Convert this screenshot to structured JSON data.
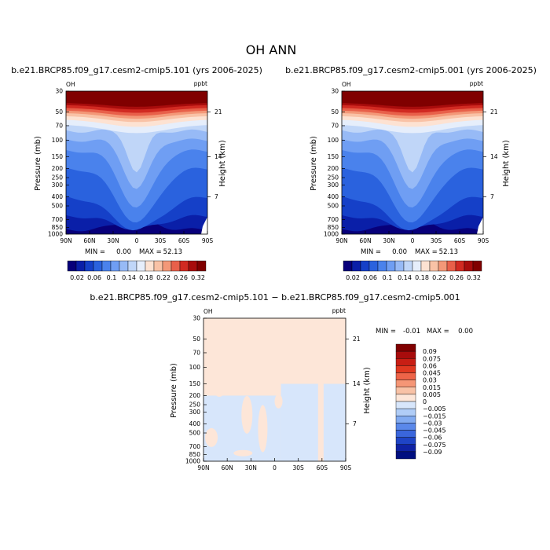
{
  "title": "OH ANN",
  "panels": [
    {
      "subtitle": "b.e21.BRCP85.f09_g17.cesm2-cmip5.101 (yrs 2006-2025)",
      "left_label": "OH",
      "right_label": "ppbt",
      "min_label": "MIN =",
      "min_value": "0.00",
      "max_label": "MAX =",
      "max_value": "52.13"
    },
    {
      "subtitle": "b.e21.BRCP85.f09_g17.cesm2-cmip5.001 (yrs 2006-2025)",
      "left_label": "OH",
      "right_label": "ppbt",
      "min_label": "MIN =",
      "min_value": "0.00",
      "max_label": "MAX =",
      "max_value": "52.13"
    },
    {
      "subtitle": "b.e21.BRCP85.f09_g17.cesm2-cmip5.101 − b.e21.BRCP85.f09_g17.cesm2-cmip5.001",
      "left_label": "OH",
      "right_label": "ppbt",
      "min_label": "MIN =",
      "min_value": "-0.01",
      "max_label": "MAX =",
      "max_value": "0.00"
    }
  ],
  "chart_data": [
    {
      "type": "heatmap",
      "title": "OH ANN",
      "subtitle": "b.e21.BRCP85.f09_g17.cesm2-cmip5.101 (yrs 2006-2025)",
      "xlabel": "",
      "ylabel": "Pressure (mb)",
      "y2label": "Height (km)",
      "x_ticks": [
        "90N",
        "60N",
        "30N",
        "0",
        "30S",
        "60S",
        "90S"
      ],
      "y_ticks": [
        "30",
        "50",
        "70",
        "100",
        "150",
        "200",
        "250",
        "300",
        "400",
        "500",
        "700",
        "850",
        "1000"
      ],
      "y2_ticks": [
        "21",
        "14",
        "7"
      ],
      "xlim": [
        90,
        -90
      ],
      "ylim": [
        1000,
        30
      ],
      "y_scale": "log",
      "units": "ppbt",
      "min": 0.0,
      "max": 52.13,
      "colorbar": [
        "0.02",
        "0.06",
        "0.1",
        "0.14",
        "0.18",
        "0.22",
        "0.26",
        "0.32"
      ]
    },
    {
      "type": "heatmap",
      "title": "OH ANN",
      "subtitle": "b.e21.BRCP85.f09_g17.cesm2-cmip5.001 (yrs 2006-2025)",
      "xlabel": "",
      "ylabel": "Pressure (mb)",
      "y2label": "Height (km)",
      "x_ticks": [
        "90N",
        "60N",
        "30N",
        "0",
        "30S",
        "60S",
        "90S"
      ],
      "y_ticks": [
        "30",
        "50",
        "70",
        "100",
        "150",
        "200",
        "250",
        "300",
        "400",
        "500",
        "700",
        "850",
        "1000"
      ],
      "y2_ticks": [
        "21",
        "14",
        "7"
      ],
      "xlim": [
        90,
        -90
      ],
      "ylim": [
        1000,
        30
      ],
      "y_scale": "log",
      "units": "ppbt",
      "min": 0.0,
      "max": 52.13,
      "colorbar": [
        "0.02",
        "0.06",
        "0.1",
        "0.14",
        "0.18",
        "0.22",
        "0.26",
        "0.32"
      ]
    },
    {
      "type": "heatmap",
      "title": "OH ANN",
      "subtitle": "b.e21.BRCP85.f09_g17.cesm2-cmip5.101 − b.e21.BRCP85.f09_g17.cesm2-cmip5.001",
      "xlabel": "",
      "ylabel": "Pressure (mb)",
      "y2label": "Height (km)",
      "x_ticks": [
        "90N",
        "60N",
        "30N",
        "0",
        "30S",
        "60S",
        "90S"
      ],
      "y_ticks": [
        "30",
        "50",
        "70",
        "100",
        "150",
        "200",
        "250",
        "300",
        "400",
        "500",
        "700",
        "850",
        "1000"
      ],
      "y2_ticks": [
        "21",
        "14",
        "7"
      ],
      "xlim": [
        90,
        -90
      ],
      "ylim": [
        1000,
        30
      ],
      "y_scale": "log",
      "units": "ppbt",
      "min": -0.01,
      "max": 0.0,
      "colorbar": [
        "0.09",
        "0.075",
        "0.06",
        "0.045",
        "0.03",
        "0.015",
        "0.005",
        "0",
        "−0.005",
        "−0.015",
        "−0.03",
        "−0.045",
        "−0.06",
        "−0.075",
        "−0.09"
      ]
    }
  ],
  "colors": {
    "mean_palette": [
      "#08007a",
      "#0a1fa8",
      "#1540c8",
      "#2a62de",
      "#4a82ec",
      "#6f9ef3",
      "#97baf6",
      "#c0d6f8",
      "#e6eefb",
      "#fde2d2",
      "#f9c2a6",
      "#f39878",
      "#e8604a",
      "#d12a22",
      "#a80c0c",
      "#800000"
    ],
    "diff_palette": [
      "#800000",
      "#a80c0c",
      "#c81e14",
      "#e03820",
      "#ee6448",
      "#f59676",
      "#f8c2a6",
      "#fde6d8",
      "#d7e6fb",
      "#b0cdf7",
      "#82abf1",
      "#5a88ea",
      "#3a66dc",
      "#1f44c6",
      "#0f22a4",
      "#000f80"
    ]
  }
}
